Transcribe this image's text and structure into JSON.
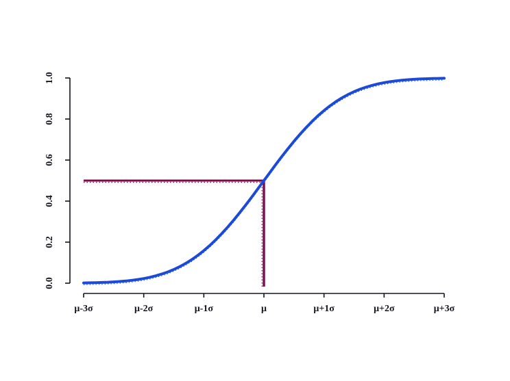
{
  "figure": {
    "title": "",
    "background": "#ffffff"
  },
  "chart_data": {
    "type": "line",
    "title": "",
    "xlabel": "",
    "ylabel": "",
    "xlim": [
      -3,
      3
    ],
    "ylim": [
      0,
      1
    ],
    "grid": false,
    "legend": null,
    "axis_color": "#14141e",
    "x_ticks": {
      "values": [
        -3,
        -2,
        -1,
        0,
        1,
        2,
        3
      ],
      "labels": [
        "μ-3σ",
        "μ-2σ",
        "μ-1σ",
        "μ",
        "μ+1σ",
        "μ+2σ",
        "μ+3σ"
      ]
    },
    "y_ticks": {
      "values": [
        0.0,
        0.2,
        0.4,
        0.6,
        0.8,
        1.0
      ],
      "labels": [
        "0.0",
        "0.2",
        "0.4",
        "0.6",
        "0.8",
        "1.0"
      ]
    },
    "series": [
      {
        "name": "normal-cdf-curve",
        "color": "#1b4ad9",
        "x_unit": "sigma-from-mu",
        "z": [
          -3.0,
          -2.9,
          -2.8,
          -2.7,
          -2.6,
          -2.5,
          -2.4,
          -2.3,
          -2.2,
          -2.1,
          -2.0,
          -1.9,
          -1.8,
          -1.7,
          -1.6,
          -1.5,
          -1.4,
          -1.3,
          -1.2,
          -1.1,
          -1.0,
          -0.9,
          -0.8,
          -0.7,
          -0.6,
          -0.5,
          -0.4,
          -0.3,
          -0.2,
          -0.1,
          0.0,
          0.1,
          0.2,
          0.3,
          0.4,
          0.5,
          0.6,
          0.7,
          0.8,
          0.9,
          1.0,
          1.1,
          1.2,
          1.3,
          1.4,
          1.5,
          1.6,
          1.7,
          1.8,
          1.9,
          2.0,
          2.1,
          2.2,
          2.3,
          2.4,
          2.5,
          2.6,
          2.7,
          2.8,
          2.9,
          3.0
        ],
        "cdf": [
          0.0013,
          0.0019,
          0.0026,
          0.0035,
          0.0047,
          0.0062,
          0.0082,
          0.0107,
          0.0139,
          0.0179,
          0.0228,
          0.0287,
          0.0359,
          0.0446,
          0.0548,
          0.0668,
          0.0808,
          0.0968,
          0.1151,
          0.1357,
          0.1587,
          0.1841,
          0.2119,
          0.242,
          0.2743,
          0.3085,
          0.3446,
          0.3821,
          0.4207,
          0.4602,
          0.5,
          0.5398,
          0.5793,
          0.6179,
          0.6554,
          0.6915,
          0.7257,
          0.758,
          0.7881,
          0.8159,
          0.8413,
          0.8643,
          0.8849,
          0.9032,
          0.9192,
          0.9332,
          0.9452,
          0.9554,
          0.9641,
          0.9713,
          0.9772,
          0.9821,
          0.9861,
          0.9893,
          0.9918,
          0.9938,
          0.9953,
          0.9965,
          0.9974,
          0.9981,
          0.9987
        ]
      }
    ],
    "reference_lines": {
      "color": "#7a0c49",
      "horizontal": {
        "y": 0.5,
        "from_x": -3,
        "to_x": 0
      },
      "vertical": {
        "x": 0,
        "from_y": 0,
        "to_y": 0.5
      }
    }
  }
}
